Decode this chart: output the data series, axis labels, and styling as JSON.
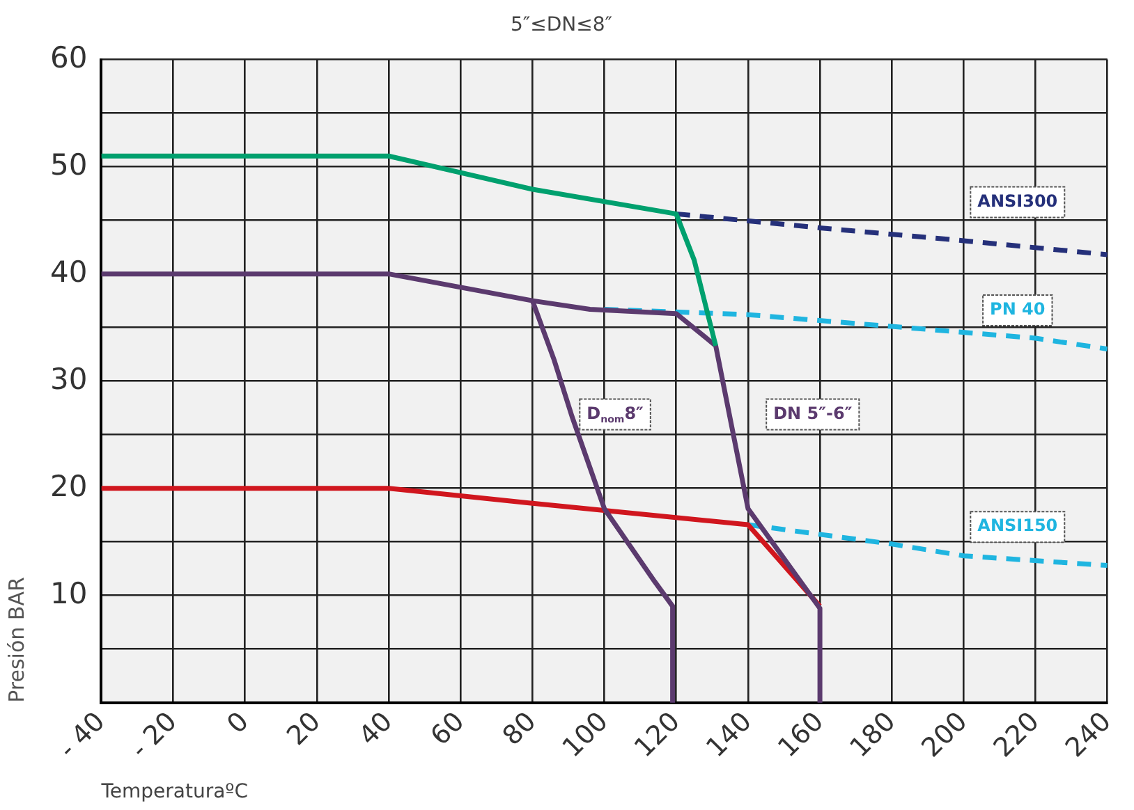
{
  "chart_data": {
    "type": "line",
    "title": "5″≤DN≤8″",
    "xlabel": "TemperaturaºC",
    "ylabel": "Presión BAR",
    "xlim": [
      -40,
      240
    ],
    "xticks": [
      {
        "value": -40,
        "label": "- 40"
      },
      {
        "value": -20,
        "label": "- 20"
      },
      0,
      20,
      40,
      60,
      80,
      100,
      120,
      140,
      160,
      180,
      200,
      220,
      240
    ],
    "ylim": [
      0,
      60
    ],
    "yticks": [
      {
        "value": 0,
        "label": null
      },
      {
        "value": 5,
        "label": null
      },
      10,
      {
        "value": 15,
        "label": null
      },
      20,
      {
        "value": 25,
        "label": null
      },
      30,
      {
        "value": 35,
        "label": null
      },
      40,
      {
        "value": 45,
        "label": null
      },
      50,
      {
        "value": 55,
        "label": null
      },
      60
    ],
    "grid": true,
    "legend": false,
    "marker": "none",
    "series": [
      {
        "color": "#00a06e",
        "line_style": "solid",
        "x": [
          -40,
          40,
          80,
          120,
          125,
          131
        ],
        "values": [
          51,
          51,
          47.9,
          45.6,
          41.3,
          33.3
        ]
      },
      {
        "name": "DN 5″-6″",
        "color": "#5b3a6e",
        "line_style": "solid",
        "x": [
          -40,
          40,
          80,
          96,
          120,
          131,
          140,
          160,
          160
        ],
        "values": [
          40,
          40,
          37.5,
          36.7,
          36.3,
          33.3,
          18.1,
          8.8,
          0
        ]
      },
      {
        "name": "D$_{nom}$8″",
        "color": "#5b3a6e",
        "line_style": "solid",
        "x": [
          80,
          86,
          91,
          100,
          114,
          119,
          119
        ],
        "values": [
          37.5,
          32,
          26.7,
          18.1,
          11.3,
          9,
          0
        ]
      },
      {
        "color": "#d0161e",
        "line_style": "solid",
        "x": [
          -40,
          40,
          80,
          140,
          160
        ],
        "values": [
          20,
          20,
          18.6,
          16.6,
          9
        ]
      },
      {
        "name": "ANSI300",
        "color": "#25307a",
        "line_style": "dashed",
        "x": [
          120,
          160,
          200,
          240
        ],
        "values": [
          45.6,
          44.3,
          43.1,
          41.8
        ]
      },
      {
        "name": "PN 40",
        "color": "#1fb5e0",
        "line_style": "dashed",
        "x": [
          100,
          140,
          180,
          220,
          240
        ],
        "values": [
          36.7,
          36.2,
          35.1,
          34,
          33
        ]
      },
      {
        "name": "ANSI150",
        "color": "#1fb5e0",
        "line_style": "dashed",
        "x": [
          140,
          180,
          200,
          240
        ],
        "values": [
          16.6,
          14.8,
          13.7,
          12.8
        ]
      }
    ]
  }
}
